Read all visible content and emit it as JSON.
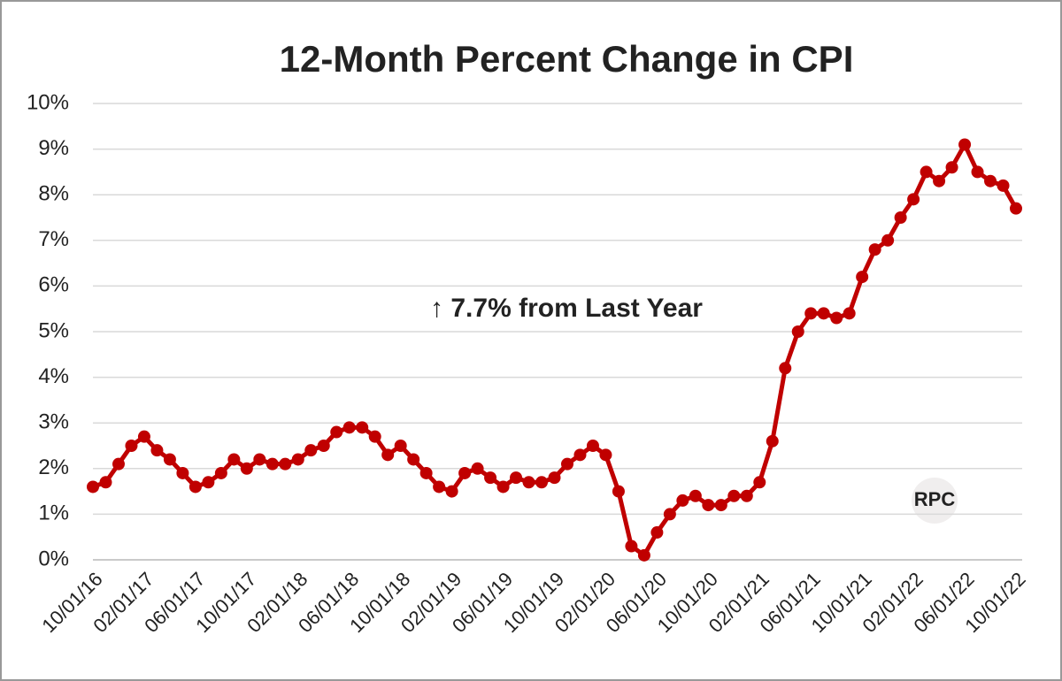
{
  "chart_data": {
    "type": "line",
    "title": "12-Month Percent Change in CPI",
    "annotation": "↑ 7.7% from Last Year",
    "watermark": "RPC",
    "categories": [
      "10/01/16",
      null,
      null,
      null,
      "02/01/17",
      null,
      null,
      null,
      "06/01/17",
      null,
      null,
      null,
      "10/01/17",
      null,
      null,
      null,
      "02/01/18",
      null,
      null,
      null,
      "06/01/18",
      null,
      null,
      null,
      "10/01/18",
      null,
      null,
      null,
      "02/01/19",
      null,
      null,
      null,
      "06/01/19",
      null,
      null,
      null,
      "10/01/19",
      null,
      null,
      null,
      "02/01/20",
      null,
      null,
      null,
      "06/01/20",
      null,
      null,
      null,
      "10/01/20",
      null,
      null,
      null,
      "02/01/21",
      null,
      null,
      null,
      "06/01/21",
      null,
      null,
      null,
      "10/01/21",
      null,
      null,
      null,
      "02/01/22",
      null,
      null,
      null,
      "06/01/22",
      null,
      null,
      null,
      "10/01/22"
    ],
    "values": [
      1.6,
      1.7,
      2.1,
      2.5,
      2.7,
      2.4,
      2.2,
      1.9,
      1.6,
      1.7,
      1.9,
      2.2,
      2.0,
      2.2,
      2.1,
      2.1,
      2.2,
      2.4,
      2.5,
      2.8,
      2.9,
      2.9,
      2.7,
      2.3,
      2.5,
      2.2,
      1.9,
      1.6,
      1.5,
      1.9,
      2.0,
      1.8,
      1.6,
      1.8,
      1.7,
      1.7,
      1.8,
      2.1,
      2.3,
      2.5,
      2.3,
      1.5,
      0.3,
      0.1,
      0.6,
      1.0,
      1.3,
      1.4,
      1.2,
      1.2,
      1.4,
      1.4,
      1.7,
      2.6,
      4.2,
      5.0,
      5.4,
      5.4,
      5.3,
      5.4,
      6.2,
      6.8,
      7.0,
      7.5,
      7.9,
      8.5,
      8.3,
      8.6,
      9.1,
      8.5,
      8.3,
      8.2,
      7.7
    ],
    "color": "#c00000",
    "ylim": [
      0,
      10
    ],
    "yticks": [
      {
        "value": 0,
        "label": "0%"
      },
      {
        "value": 1,
        "label": "1%"
      },
      {
        "value": 2,
        "label": "2%"
      },
      {
        "value": 3,
        "label": "3%"
      },
      {
        "value": 4,
        "label": "4%"
      },
      {
        "value": 5,
        "label": "5%"
      },
      {
        "value": 6,
        "label": "6%"
      },
      {
        "value": 7,
        "label": "7%"
      },
      {
        "value": 8,
        "label": "8%"
      },
      {
        "value": 9,
        "label": "9%"
      },
      {
        "value": 10,
        "label": "10%"
      }
    ],
    "grid": true
  }
}
